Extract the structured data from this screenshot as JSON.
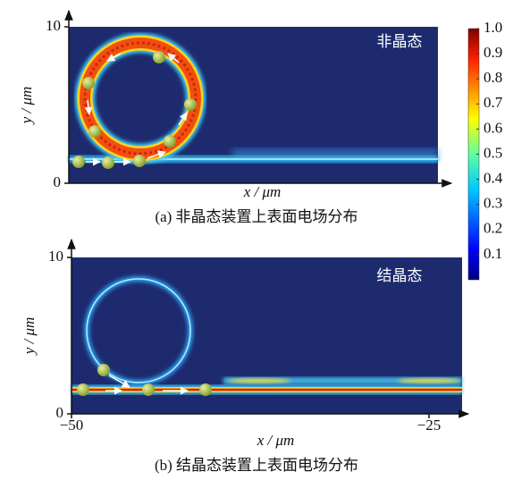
{
  "chart_data": [
    {
      "type": "field-map",
      "label": "非晶态",
      "x_label": "x / μm",
      "y_label": "y / μm",
      "caption": "(a) 非晶态装置上表面电场分布",
      "ylim": [
        0,
        10
      ],
      "yticks": [
        0,
        10
      ]
    },
    {
      "type": "field-map",
      "label": "结晶态",
      "x_label": "x / μm",
      "y_label": "y / μm",
      "caption": "(b) 结晶态装置上表面电场分布",
      "ylim": [
        0,
        10
      ],
      "yticks": [
        0,
        10
      ],
      "xlim": [
        -50,
        -25
      ],
      "xticks": [
        {
          "value": -50,
          "label": "−50"
        },
        {
          "value": -25,
          "label": "−25"
        }
      ]
    }
  ],
  "colorbar": {
    "lim": [
      0,
      1
    ],
    "ticks": [
      {
        "value": 1,
        "label": "1.0"
      },
      0.9,
      0.8,
      0.7,
      0.6,
      0.5,
      0.4,
      0.3,
      0.2,
      0.1
    ]
  }
}
